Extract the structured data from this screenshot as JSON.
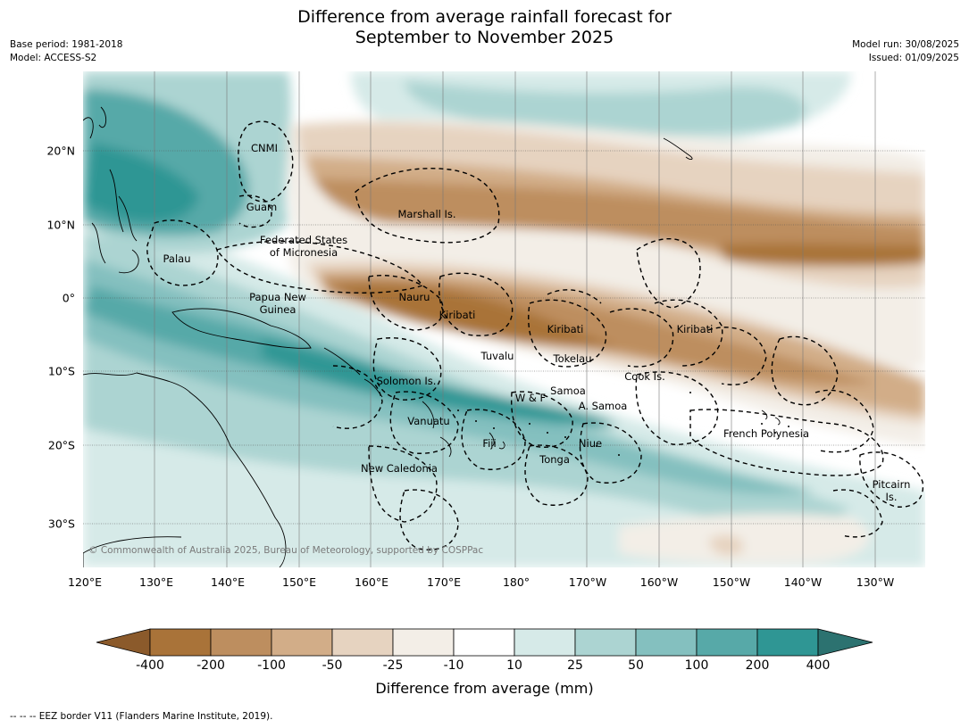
{
  "title_line1": "Difference from average rainfall forecast for",
  "title_line2": "September to November 2025",
  "meta_left": {
    "base_period": "Base period: 1981-2018",
    "model": "Model: ACCESS-S2"
  },
  "meta_right": {
    "model_run": "Model run: 30/08/2025",
    "issued": "Issued: 01/09/2025"
  },
  "copyright": "© Commonwealth of Australia 2025, Bureau of Meteorology, supported by COSPPac",
  "lat_labels": [
    "20°N",
    "10°N",
    "0°",
    "10°S",
    "20°S",
    "30°S"
  ],
  "lon_labels": [
    "120°E",
    "130°E",
    "140°E",
    "150°E",
    "160°E",
    "170°E",
    "180°",
    "170°W",
    "160°W",
    "150°W",
    "140°W",
    "130°W"
  ],
  "places": {
    "cnmi": "CNMI",
    "guam": "Guam",
    "marshall": "Marshall Is.",
    "fsm_1": "Federated States",
    "fsm_2": "of Micronesia",
    "palau": "Palau",
    "png_1": "Papua New",
    "png_2": "Guinea",
    "nauru": "Nauru",
    "kiribati_w": "Kiribati",
    "kiribati_c": "Kiribati",
    "kiribati_e": "Kiribati",
    "tuvalu": "Tuvalu",
    "tokelau": "Tokelau",
    "cook": "Cook Is.",
    "solomon": "Solomon Is.",
    "samoa": "Samoa",
    "wf": "W & F",
    "asamoa": "A. Samoa",
    "vanuatu": "Vanuatu",
    "fiji": "Fiji",
    "niue": "Niue",
    "tonga": "Tonga",
    "newcal": "New Caledonia",
    "frpoly": "French Polynesia",
    "pitcairn_1": "Pitcairn",
    "pitcairn_2": "Is."
  },
  "colorbar": {
    "labels": [
      "-400",
      "-200",
      "-100",
      "-50",
      "-25",
      "-10",
      "10",
      "25",
      "50",
      "100",
      "200",
      "400"
    ],
    "colors": {
      "below_min": "#8b5a2b",
      "c1": "#a97339",
      "c2": "#bd8e5f",
      "c3": "#d2ad88",
      "c4": "#e6d3c0",
      "c5": "#f3eee7",
      "c6": "#ffffff",
      "c7": "#d6eae8",
      "c8": "#acd4d2",
      "c9": "#84c0bf",
      "c10": "#57a9a8",
      "c11": "#2f9694",
      "above_max": "#2c7270"
    },
    "title": "Difference from average (mm)"
  },
  "footnote": "--  --  -- EEZ border V11 (Flanders Marine Institute, 2019)."
}
